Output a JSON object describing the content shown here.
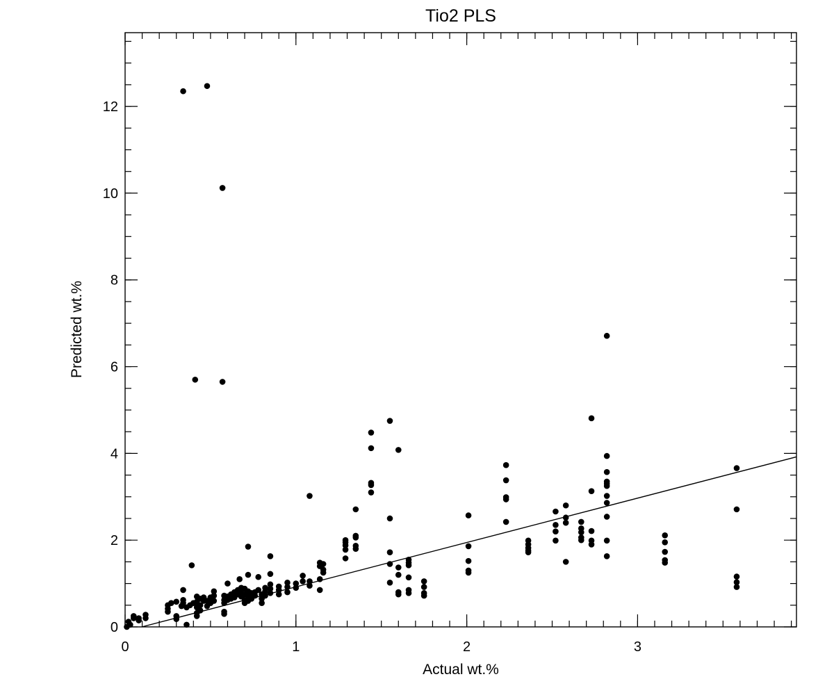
{
  "chart_data": {
    "type": "scatter",
    "title": "Tio2 PLS",
    "xlabel": "Actual wt.%",
    "ylabel": "Predicted wt.%",
    "xlim": [
      0,
      3.93
    ],
    "ylim": [
      0,
      13.7
    ],
    "x_ticks": [
      0,
      1,
      2,
      3
    ],
    "x_tick_labels": [
      "0",
      "1",
      "2",
      "3"
    ],
    "y_ticks": [
      0,
      2,
      4,
      6,
      8,
      10,
      12
    ],
    "y_tick_labels": [
      "0",
      "2",
      "4",
      "6",
      "8",
      "10",
      "12"
    ],
    "x_minor_step": 0.1,
    "y_minor_step": 0.5,
    "grid": false,
    "marker_color": "#000000",
    "fit_line": {
      "x": [
        0,
        3.93
      ],
      "y": [
        -0.1,
        3.92
      ]
    },
    "points": [
      [
        0.34,
        12.35
      ],
      [
        0.48,
        12.47
      ],
      [
        0.57,
        10.12
      ],
      [
        0.41,
        5.7
      ],
      [
        0.57,
        5.65
      ],
      [
        2.82,
        6.71
      ],
      [
        2.73,
        4.81
      ],
      [
        1.55,
        4.75
      ],
      [
        1.44,
        4.48
      ],
      [
        1.44,
        4.12
      ],
      [
        1.6,
        4.08
      ],
      [
        1.44,
        3.32
      ],
      [
        1.44,
        3.27
      ],
      [
        1.44,
        3.1
      ],
      [
        1.08,
        3.02
      ],
      [
        1.35,
        2.71
      ],
      [
        1.35,
        2.1
      ],
      [
        1.35,
        2.06
      ],
      [
        1.35,
        1.87
      ],
      [
        1.35,
        1.8
      ],
      [
        1.29,
        2.0
      ],
      [
        1.29,
        1.95
      ],
      [
        1.29,
        1.88
      ],
      [
        1.29,
        1.78
      ],
      [
        1.29,
        1.58
      ],
      [
        1.55,
        2.5
      ],
      [
        1.55,
        1.72
      ],
      [
        1.55,
        1.45
      ],
      [
        1.55,
        1.02
      ],
      [
        1.6,
        1.37
      ],
      [
        1.6,
        1.2
      ],
      [
        1.6,
        0.8
      ],
      [
        1.6,
        0.75
      ],
      [
        1.66,
        1.55
      ],
      [
        1.66,
        1.48
      ],
      [
        1.66,
        1.42
      ],
      [
        1.66,
        1.14
      ],
      [
        1.66,
        0.85
      ],
      [
        1.66,
        0.78
      ],
      [
        1.75,
        1.05
      ],
      [
        1.75,
        0.92
      ],
      [
        1.75,
        0.78
      ],
      [
        1.75,
        0.72
      ],
      [
        2.01,
        2.57
      ],
      [
        2.01,
        1.86
      ],
      [
        2.01,
        1.52
      ],
      [
        2.01,
        1.3
      ],
      [
        2.01,
        1.25
      ],
      [
        2.23,
        3.73
      ],
      [
        2.23,
        3.38
      ],
      [
        2.23,
        2.99
      ],
      [
        2.23,
        2.94
      ],
      [
        2.23,
        2.42
      ],
      [
        2.36,
        1.99
      ],
      [
        2.36,
        1.9
      ],
      [
        2.36,
        1.82
      ],
      [
        2.36,
        1.76
      ],
      [
        2.36,
        1.72
      ],
      [
        2.52,
        2.66
      ],
      [
        2.52,
        2.35
      ],
      [
        2.52,
        2.2
      ],
      [
        2.52,
        1.99
      ],
      [
        2.58,
        2.8
      ],
      [
        2.58,
        2.52
      ],
      [
        2.58,
        2.4
      ],
      [
        2.58,
        1.5
      ],
      [
        2.67,
        2.42
      ],
      [
        2.67,
        2.27
      ],
      [
        2.67,
        2.18
      ],
      [
        2.67,
        2.06
      ],
      [
        2.67,
        2.0
      ],
      [
        2.73,
        3.13
      ],
      [
        2.73,
        2.21
      ],
      [
        2.73,
        1.99
      ],
      [
        2.73,
        1.9
      ],
      [
        2.82,
        3.94
      ],
      [
        2.82,
        3.57
      ],
      [
        2.82,
        3.35
      ],
      [
        2.82,
        3.3
      ],
      [
        2.82,
        3.25
      ],
      [
        2.82,
        3.02
      ],
      [
        2.82,
        2.86
      ],
      [
        2.82,
        2.54
      ],
      [
        2.82,
        1.99
      ],
      [
        2.82,
        1.63
      ],
      [
        3.16,
        2.11
      ],
      [
        3.16,
        1.95
      ],
      [
        3.16,
        1.73
      ],
      [
        3.16,
        1.54
      ],
      [
        3.16,
        1.48
      ],
      [
        3.58,
        3.66
      ],
      [
        3.58,
        2.71
      ],
      [
        3.58,
        1.16
      ],
      [
        3.58,
        1.03
      ],
      [
        3.58,
        0.92
      ],
      [
        0.72,
        1.85
      ],
      [
        0.85,
        1.63
      ],
      [
        0.39,
        1.42
      ],
      [
        0.85,
        1.22
      ],
      [
        0.72,
        1.2
      ],
      [
        0.78,
        1.15
      ],
      [
        0.67,
        1.1
      ],
      [
        0.6,
        1.0
      ],
      [
        0.34,
        0.85
      ],
      [
        1.14,
        1.48
      ],
      [
        1.14,
        1.4
      ],
      [
        1.16,
        1.45
      ],
      [
        1.16,
        1.32
      ],
      [
        1.16,
        1.25
      ],
      [
        1.14,
        1.1
      ],
      [
        1.14,
        0.85
      ],
      [
        1.08,
        1.05
      ],
      [
        1.08,
        0.95
      ],
      [
        1.04,
        1.18
      ],
      [
        1.04,
        1.05
      ],
      [
        1.0,
        1.0
      ],
      [
        1.0,
        0.9
      ],
      [
        0.95,
        1.02
      ],
      [
        0.95,
        0.92
      ],
      [
        0.95,
        0.8
      ],
      [
        0.9,
        0.93
      ],
      [
        0.9,
        0.85
      ],
      [
        0.9,
        0.75
      ],
      [
        0.85,
        0.98
      ],
      [
        0.85,
        0.88
      ],
      [
        0.85,
        0.78
      ],
      [
        0.82,
        0.9
      ],
      [
        0.82,
        0.82
      ],
      [
        0.82,
        0.72
      ],
      [
        0.8,
        0.75
      ],
      [
        0.8,
        0.65
      ],
      [
        0.8,
        0.55
      ],
      [
        0.78,
        0.85
      ],
      [
        0.76,
        0.8
      ],
      [
        0.76,
        0.72
      ],
      [
        0.74,
        0.78
      ],
      [
        0.74,
        0.65
      ],
      [
        0.72,
        0.82
      ],
      [
        0.72,
        0.72
      ],
      [
        0.72,
        0.6
      ],
      [
        0.7,
        0.88
      ],
      [
        0.7,
        0.75
      ],
      [
        0.7,
        0.62
      ],
      [
        0.7,
        0.55
      ],
      [
        0.68,
        0.9
      ],
      [
        0.68,
        0.78
      ],
      [
        0.68,
        0.7
      ],
      [
        0.66,
        0.85
      ],
      [
        0.66,
        0.75
      ],
      [
        0.64,
        0.8
      ],
      [
        0.64,
        0.68
      ],
      [
        0.62,
        0.75
      ],
      [
        0.62,
        0.65
      ],
      [
        0.6,
        0.7
      ],
      [
        0.6,
        0.62
      ],
      [
        0.58,
        0.72
      ],
      [
        0.58,
        0.62
      ],
      [
        0.58,
        0.55
      ],
      [
        0.58,
        0.35
      ],
      [
        0.58,
        0.3
      ],
      [
        0.52,
        0.82
      ],
      [
        0.52,
        0.72
      ],
      [
        0.52,
        0.6
      ],
      [
        0.5,
        0.68
      ],
      [
        0.5,
        0.55
      ],
      [
        0.48,
        0.6
      ],
      [
        0.48,
        0.48
      ],
      [
        0.46,
        0.68
      ],
      [
        0.46,
        0.6
      ],
      [
        0.44,
        0.65
      ],
      [
        0.44,
        0.5
      ],
      [
        0.44,
        0.38
      ],
      [
        0.42,
        0.7
      ],
      [
        0.42,
        0.58
      ],
      [
        0.42,
        0.45
      ],
      [
        0.42,
        0.32
      ],
      [
        0.42,
        0.25
      ],
      [
        0.4,
        0.55
      ],
      [
        0.38,
        0.5
      ],
      [
        0.36,
        0.45
      ],
      [
        0.36,
        0.05
      ],
      [
        0.34,
        0.62
      ],
      [
        0.34,
        0.55
      ],
      [
        0.33,
        0.48
      ],
      [
        0.3,
        0.58
      ],
      [
        0.3,
        0.25
      ],
      [
        0.3,
        0.18
      ],
      [
        0.27,
        0.55
      ],
      [
        0.25,
        0.5
      ],
      [
        0.25,
        0.42
      ],
      [
        0.25,
        0.35
      ],
      [
        0.02,
        0.12
      ],
      [
        0.03,
        0.05
      ],
      [
        0.05,
        0.25
      ],
      [
        0.05,
        0.2
      ],
      [
        0.08,
        0.2
      ],
      [
        0.08,
        0.15
      ],
      [
        0.12,
        0.28
      ],
      [
        0.12,
        0.2
      ],
      [
        0.01,
        0.0
      ]
    ]
  }
}
